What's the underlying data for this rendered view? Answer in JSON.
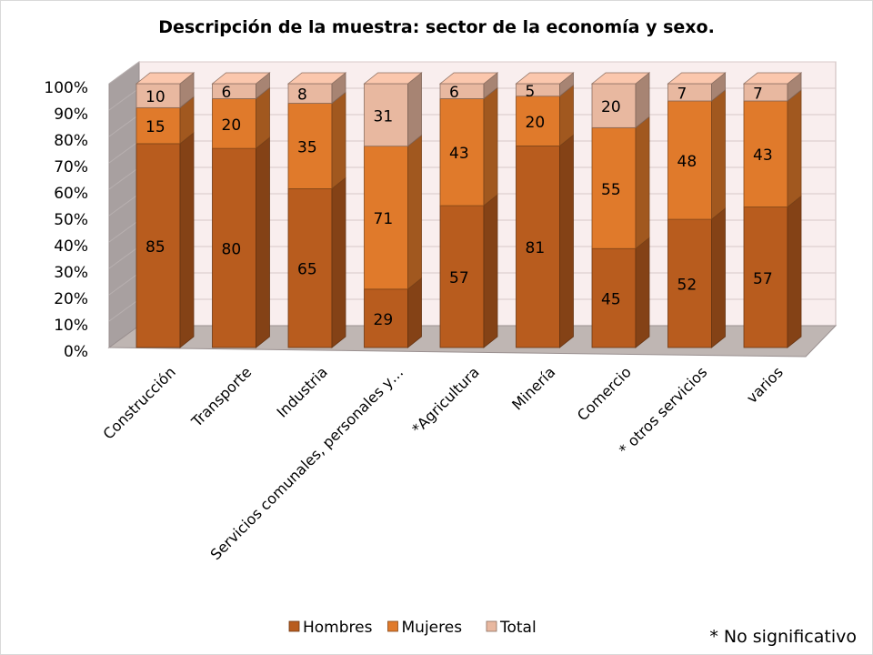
{
  "chart_data": {
    "type": "bar",
    "stacked": true,
    "percent_stacked": true,
    "three_d": true,
    "title": "Descripción de la muestra: sector de la economía y sexo.",
    "categories": [
      "Construcción",
      "Transporte",
      "Industria",
      "Servicios comunales, personales y…",
      "*Agricultura",
      "Minería",
      "Comercio",
      "* otros servicios",
      "varios"
    ],
    "series": [
      {
        "name": "Hombres",
        "color": "#b85c1e",
        "values": [
          85,
          80,
          65,
          29,
          57,
          81,
          45,
          52,
          57
        ]
      },
      {
        "name": "Mujeres",
        "color": "#e07a2b",
        "values": [
          15,
          20,
          35,
          71,
          43,
          20,
          55,
          48,
          43
        ]
      },
      {
        "name": "Total",
        "color": "#e8b8a0",
        "values": [
          10,
          6,
          8,
          31,
          6,
          5,
          20,
          7,
          7
        ]
      }
    ],
    "y_ticks": [
      "0%",
      "10%",
      "20%",
      "30%",
      "40%",
      "50%",
      "60%",
      "70%",
      "80%",
      "90%",
      "100%"
    ],
    "ylim": [
      0,
      100
    ],
    "legend_position": "bottom",
    "footnote": "* No significativo",
    "colors": {
      "wall": "#f9eeee",
      "floor": "#bfb6b3",
      "side_wall": "#a8a0a0"
    }
  }
}
